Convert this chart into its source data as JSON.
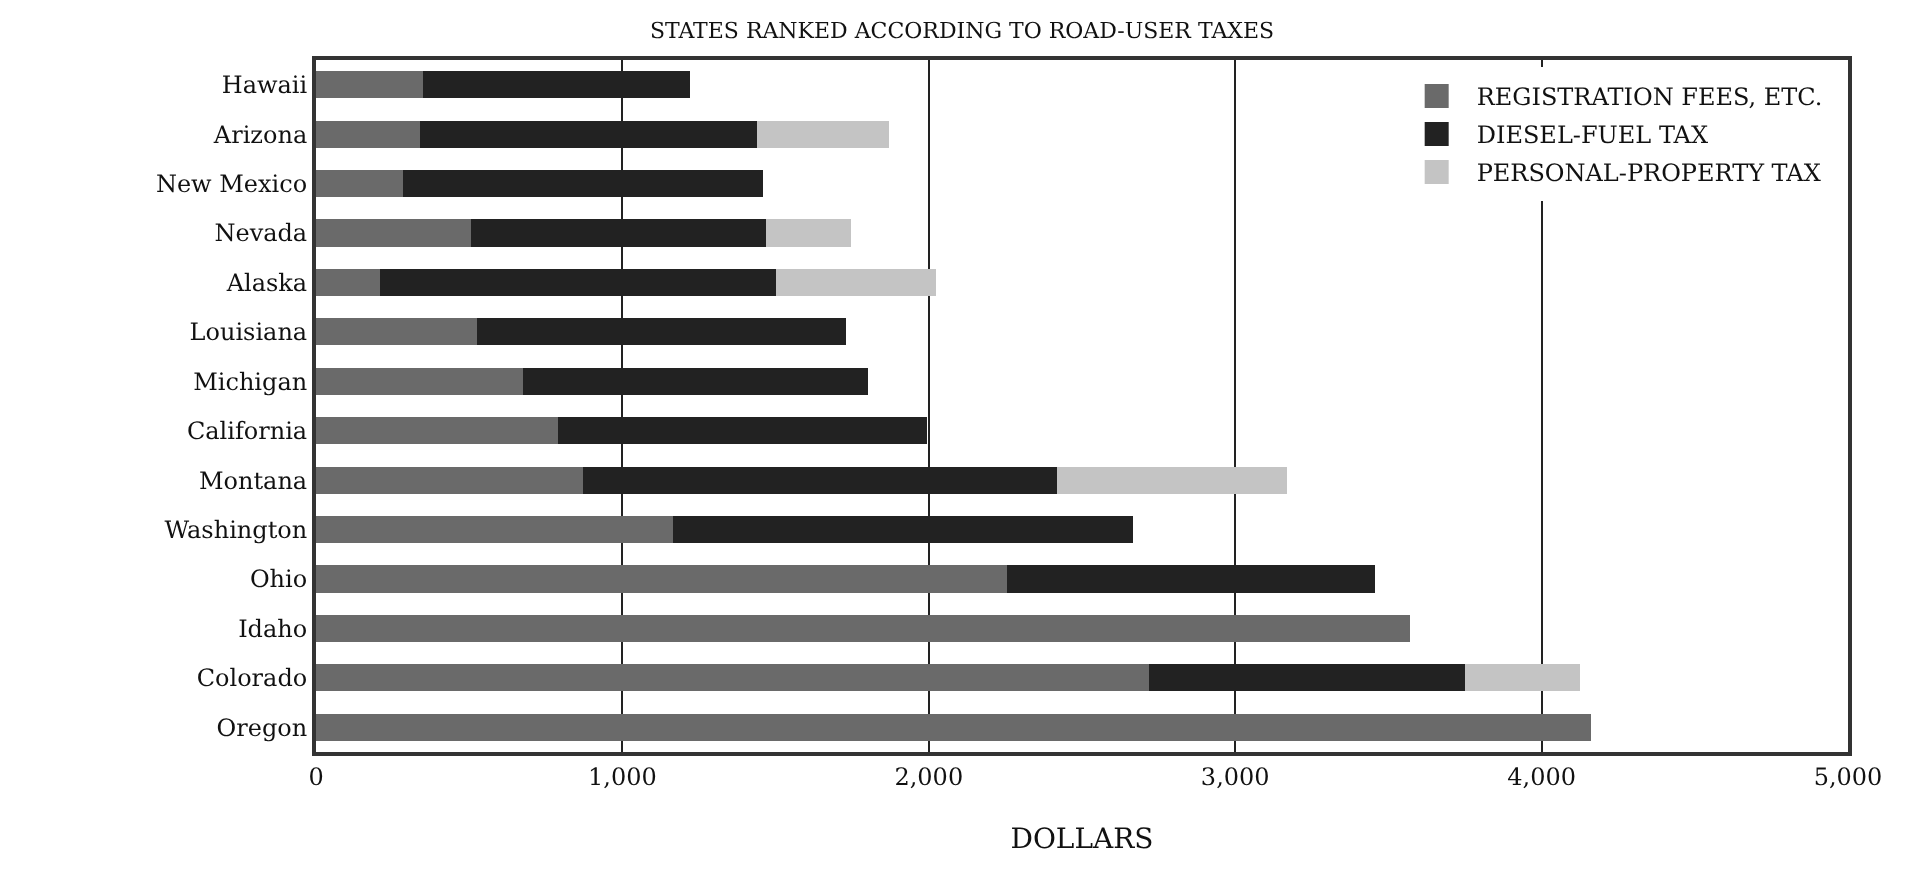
{
  "chart_data": {
    "type": "bar",
    "orientation": "horizontal",
    "stacked": true,
    "title": "STATES RANKED ACCORDING TO ROAD-USER TAXES",
    "xlabel": "DOLLARS",
    "categories": [
      "Hawaii",
      "Arizona",
      "New Mexico",
      "Nevada",
      "Alaska",
      "Louisiana",
      "Michigan",
      "California",
      "Montana",
      "Washington",
      "Ohio",
      "Idaho",
      "Colorado",
      "Oregon"
    ],
    "series": [
      {
        "name": "REGISTRATION FEES, ETC.",
        "color": "#6a6a6a",
        "values": [
          350,
          340,
          285,
          505,
          210,
          525,
          675,
          790,
          870,
          1165,
          2255,
          3570,
          2720,
          4160
        ]
      },
      {
        "name": "DIESEL-FUEL TAX",
        "color": "#222222",
        "values": [
          870,
          1100,
          1175,
          965,
          1290,
          1205,
          1125,
          1205,
          1550,
          1500,
          1200,
          null,
          1030,
          null
        ]
      },
      {
        "name": "PERSONAL-PROPERTY TAX",
        "color": "#c4c4c4",
        "values": [
          null,
          430,
          null,
          275,
          525,
          null,
          null,
          null,
          750,
          null,
          null,
          null,
          375,
          null
        ]
      }
    ],
    "xlim": [
      0,
      5000
    ],
    "xticks": [
      0,
      {
        "value": 1000,
        "label": "1,000"
      },
      {
        "value": 2000,
        "label": "2,000"
      },
      {
        "value": 3000,
        "label": "3,000"
      },
      {
        "value": 4000,
        "label": "4,000"
      },
      {
        "value": 5000,
        "label": "5,000"
      }
    ],
    "grid": "x",
    "legend": "top right"
  }
}
